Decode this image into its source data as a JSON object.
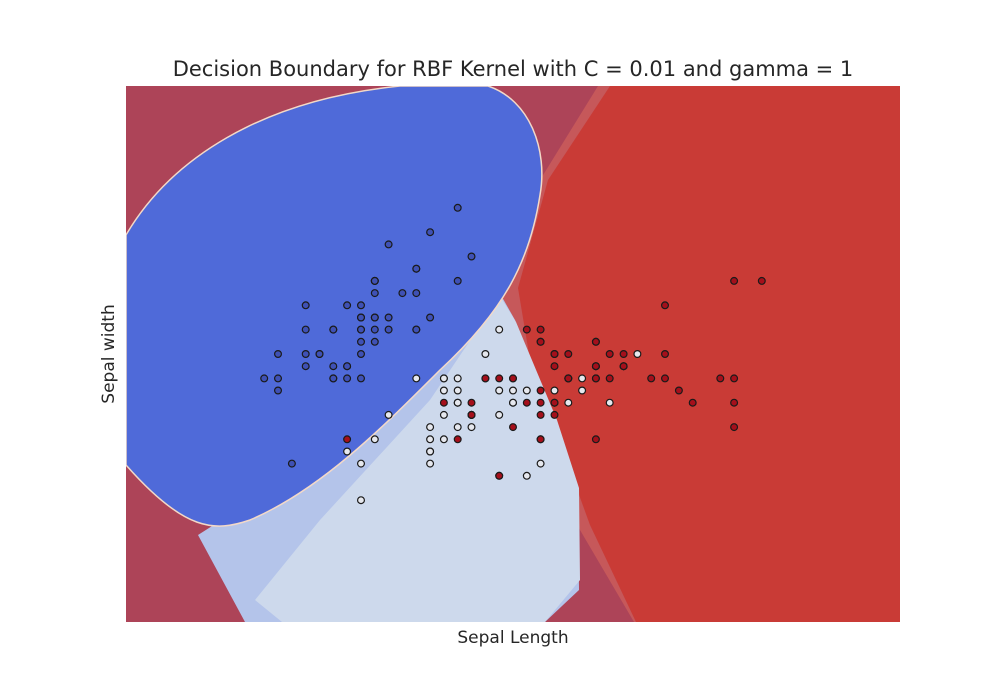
{
  "chart_data": {
    "type": "scatter",
    "title": "Decision Boundary for RBF Kernel with C = 0.01 and gamma = 1",
    "xlabel": "Sepal Length",
    "ylabel": "Sepal width",
    "xlim": [
      3.3,
      8.9
    ],
    "ylim": [
      1.0,
      5.4
    ],
    "xticks": [],
    "yticks": [],
    "grid": false,
    "legend": "none",
    "region_colors": {
      "class_0": "#4f6ad9",
      "class_0_soft": "#b4c4ea",
      "class_1": "#cdd9ec",
      "class_2": "#c93b36",
      "class_2_soft": "#c6585a",
      "background": "#ad4458"
    },
    "point_colors": {
      "class_0": "#3f51b5",
      "class_1": "#e6e8ee",
      "class_2": "#a50f1b",
      "edge": "#1a1a1a"
    },
    "series": [
      {
        "class": 0,
        "points": [
          [
            5.1,
            3.5
          ],
          [
            4.9,
            3.0
          ],
          [
            4.7,
            3.2
          ],
          [
            4.6,
            3.1
          ],
          [
            5.0,
            3.6
          ],
          [
            5.4,
            3.9
          ],
          [
            4.6,
            3.4
          ],
          [
            5.0,
            3.4
          ],
          [
            4.4,
            2.9
          ],
          [
            4.9,
            3.1
          ],
          [
            5.4,
            3.7
          ],
          [
            4.8,
            3.4
          ],
          [
            4.8,
            3.0
          ],
          [
            4.3,
            3.0
          ],
          [
            5.8,
            4.0
          ],
          [
            5.7,
            4.4
          ],
          [
            5.4,
            3.9
          ],
          [
            5.1,
            3.5
          ],
          [
            5.7,
            3.8
          ],
          [
            5.1,
            3.8
          ],
          [
            5.4,
            3.4
          ],
          [
            5.1,
            3.7
          ],
          [
            4.6,
            3.6
          ],
          [
            5.1,
            3.3
          ],
          [
            4.8,
            3.4
          ],
          [
            5.0,
            3.0
          ],
          [
            5.0,
            3.4
          ],
          [
            5.2,
            3.5
          ],
          [
            5.2,
            3.4
          ],
          [
            4.7,
            3.2
          ],
          [
            4.8,
            3.1
          ],
          [
            5.4,
            3.4
          ],
          [
            5.2,
            4.1
          ],
          [
            5.5,
            4.2
          ],
          [
            4.9,
            3.1
          ],
          [
            5.0,
            3.2
          ],
          [
            5.5,
            3.5
          ],
          [
            4.9,
            3.6
          ],
          [
            4.4,
            3.0
          ],
          [
            5.1,
            3.4
          ],
          [
            5.0,
            3.5
          ],
          [
            4.5,
            2.3
          ],
          [
            4.4,
            3.2
          ],
          [
            5.0,
            3.5
          ],
          [
            5.1,
            3.8
          ],
          [
            4.8,
            3.0
          ],
          [
            5.1,
            3.8
          ],
          [
            4.6,
            3.2
          ],
          [
            5.3,
            3.7
          ],
          [
            5.0,
            3.3
          ]
        ]
      },
      {
        "class": 1,
        "points": [
          [
            7.0,
            3.2
          ],
          [
            6.4,
            3.2
          ],
          [
            6.9,
            3.1
          ],
          [
            5.5,
            2.3
          ],
          [
            6.5,
            2.8
          ],
          [
            5.7,
            2.8
          ],
          [
            6.3,
            3.3
          ],
          [
            4.9,
            2.4
          ],
          [
            6.6,
            2.9
          ],
          [
            5.2,
            2.7
          ],
          [
            5.0,
            2.0
          ],
          [
            5.9,
            3.0
          ],
          [
            6.0,
            2.2
          ],
          [
            6.1,
            2.9
          ],
          [
            5.6,
            2.9
          ],
          [
            6.7,
            3.1
          ],
          [
            5.6,
            3.0
          ],
          [
            5.8,
            2.7
          ],
          [
            6.2,
            2.2
          ],
          [
            5.6,
            2.5
          ],
          [
            5.9,
            3.2
          ],
          [
            6.1,
            2.8
          ],
          [
            6.3,
            2.5
          ],
          [
            6.1,
            2.8
          ],
          [
            6.4,
            2.9
          ],
          [
            6.6,
            3.0
          ],
          [
            6.8,
            2.8
          ],
          [
            6.7,
            3.0
          ],
          [
            6.0,
            2.9
          ],
          [
            5.7,
            2.6
          ],
          [
            5.5,
            2.4
          ],
          [
            5.5,
            2.4
          ],
          [
            5.8,
            2.7
          ],
          [
            6.0,
            2.7
          ],
          [
            5.4,
            3.0
          ],
          [
            6.0,
            3.4
          ],
          [
            6.7,
            3.1
          ],
          [
            6.3,
            2.3
          ],
          [
            5.6,
            3.0
          ],
          [
            5.5,
            2.5
          ],
          [
            5.5,
            2.6
          ],
          [
            6.1,
            3.0
          ],
          [
            5.8,
            2.6
          ],
          [
            5.0,
            2.3
          ],
          [
            5.6,
            2.7
          ],
          [
            5.7,
            3.0
          ],
          [
            5.7,
            2.9
          ],
          [
            6.2,
            2.9
          ],
          [
            5.1,
            2.5
          ],
          [
            5.7,
            2.8
          ]
        ]
      },
      {
        "class": 2,
        "points": [
          [
            6.3,
            3.3
          ],
          [
            5.8,
            2.7
          ],
          [
            7.1,
            3.0
          ],
          [
            6.3,
            2.9
          ],
          [
            6.5,
            3.0
          ],
          [
            7.6,
            3.0
          ],
          [
            4.9,
            2.5
          ],
          [
            7.3,
            2.9
          ],
          [
            6.7,
            2.5
          ],
          [
            7.2,
            3.6
          ],
          [
            6.5,
            3.2
          ],
          [
            6.4,
            2.7
          ],
          [
            6.8,
            3.0
          ],
          [
            5.7,
            2.5
          ],
          [
            5.8,
            2.8
          ],
          [
            6.4,
            3.2
          ],
          [
            6.5,
            3.0
          ],
          [
            7.7,
            3.8
          ],
          [
            7.7,
            2.6
          ],
          [
            6.0,
            2.2
          ],
          [
            6.9,
            3.2
          ],
          [
            5.6,
            2.8
          ],
          [
            7.7,
            2.8
          ],
          [
            6.3,
            2.7
          ],
          [
            6.7,
            3.3
          ],
          [
            7.2,
            3.2
          ],
          [
            6.2,
            2.8
          ],
          [
            6.1,
            3.0
          ],
          [
            6.4,
            2.8
          ],
          [
            7.2,
            3.0
          ],
          [
            7.4,
            2.8
          ],
          [
            7.9,
            3.8
          ],
          [
            6.4,
            2.8
          ],
          [
            6.3,
            2.8
          ],
          [
            6.1,
            2.6
          ],
          [
            7.7,
            3.0
          ],
          [
            6.3,
            3.4
          ],
          [
            6.4,
            3.1
          ],
          [
            6.0,
            3.0
          ],
          [
            6.9,
            3.1
          ],
          [
            6.7,
            3.1
          ],
          [
            6.9,
            3.1
          ],
          [
            5.8,
            2.7
          ],
          [
            6.8,
            3.2
          ],
          [
            6.7,
            3.3
          ],
          [
            6.7,
            3.0
          ],
          [
            6.3,
            2.5
          ],
          [
            6.5,
            3.0
          ],
          [
            6.2,
            3.4
          ],
          [
            5.9,
            3.0
          ]
        ]
      }
    ]
  }
}
